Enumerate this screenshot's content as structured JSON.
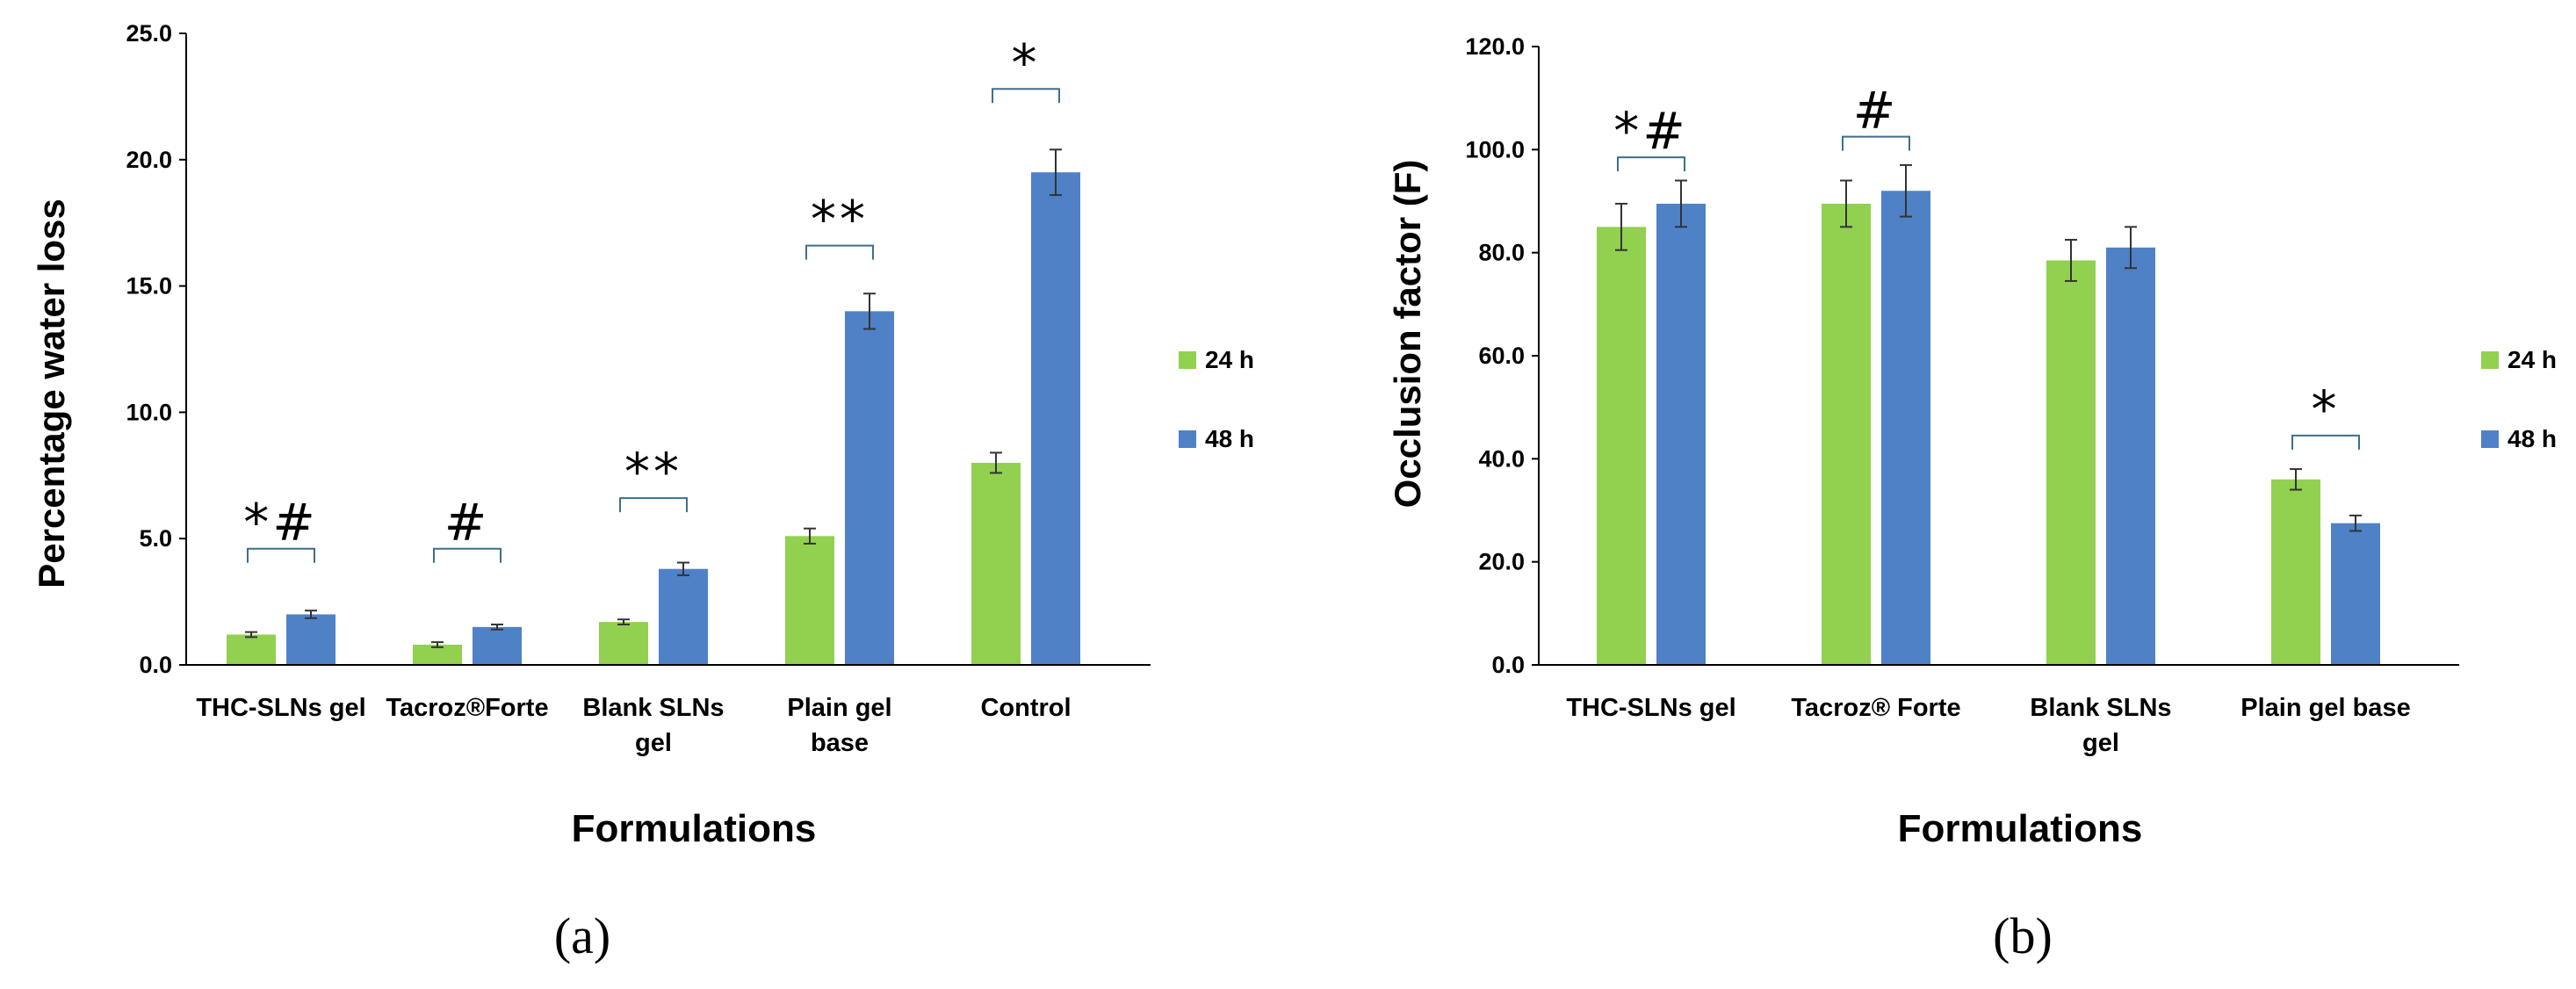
{
  "colors": {
    "series_24h": "#92d050",
    "series_48h": "#4f81c7",
    "axis": "#000000",
    "bracket": "#3f6e8a",
    "error_bar": "#333333"
  },
  "chart_data": [
    {
      "panel_label": "(a)",
      "type": "bar",
      "title": "",
      "xlabel": "Formulations",
      "ylabel": "Percentage water loss",
      "ylim": [
        0,
        25
      ],
      "y_ticks": [
        "0.0",
        "5.0",
        "10.0",
        "15.0",
        "20.0",
        "25.0"
      ],
      "categories": [
        [
          "THC-SLNs gel"
        ],
        [
          "Tacroz®Forte"
        ],
        [
          "Blank SLNs",
          "gel"
        ],
        [
          "Plain gel",
          "base"
        ],
        [
          "Control"
        ]
      ],
      "series": [
        {
          "name": "24 h",
          "values": [
            1.2,
            0.8,
            1.7,
            5.1,
            8.0
          ],
          "errors": [
            0.1,
            0.1,
            0.1,
            0.3,
            0.4
          ]
        },
        {
          "name": "48 h",
          "values": [
            2.0,
            1.5,
            3.8,
            14.0,
            19.5
          ],
          "errors": [
            0.15,
            0.1,
            0.25,
            0.7,
            0.9
          ]
        }
      ],
      "annotations": [
        {
          "category_index": 0,
          "text": "*#",
          "bracket_y": 4.6
        },
        {
          "category_index": 1,
          "text": "#",
          "bracket_y": 4.6
        },
        {
          "category_index": 2,
          "text": "**",
          "bracket_y": 6.6
        },
        {
          "category_index": 3,
          "text": "**",
          "bracket_y": 16.6
        },
        {
          "category_index": 4,
          "text": "*",
          "bracket_y": 22.8
        }
      ],
      "legend_position": "right"
    },
    {
      "panel_label": "(b)",
      "type": "bar",
      "title": "",
      "xlabel": "Formulations",
      "ylabel": "Occlusion factor (F)",
      "ylim": [
        0,
        120
      ],
      "y_ticks": [
        "0.0",
        "20.0",
        "40.0",
        "60.0",
        "80.0",
        "100.0",
        "120.0"
      ],
      "categories": [
        [
          "THC-SLNs gel"
        ],
        [
          "Tacroz® Forte"
        ],
        [
          "Blank SLNs",
          "gel"
        ],
        [
          "Plain gel base"
        ]
      ],
      "series": [
        {
          "name": "24 h",
          "values": [
            85.0,
            89.5,
            78.5,
            36.0
          ],
          "errors": [
            4.5,
            4.5,
            4.0,
            2.0
          ]
        },
        {
          "name": "48 h",
          "values": [
            89.5,
            92.0,
            81.0,
            27.5
          ],
          "errors": [
            4.5,
            5.0,
            4.0,
            1.5
          ]
        }
      ],
      "annotations": [
        {
          "category_index": 0,
          "text": "*#",
          "bracket_y": 98.5
        },
        {
          "category_index": 1,
          "text": "#",
          "bracket_y": 102.5
        },
        {
          "category_index": 3,
          "text": "*",
          "bracket_y": 44.5
        }
      ],
      "legend_position": "right"
    }
  ]
}
